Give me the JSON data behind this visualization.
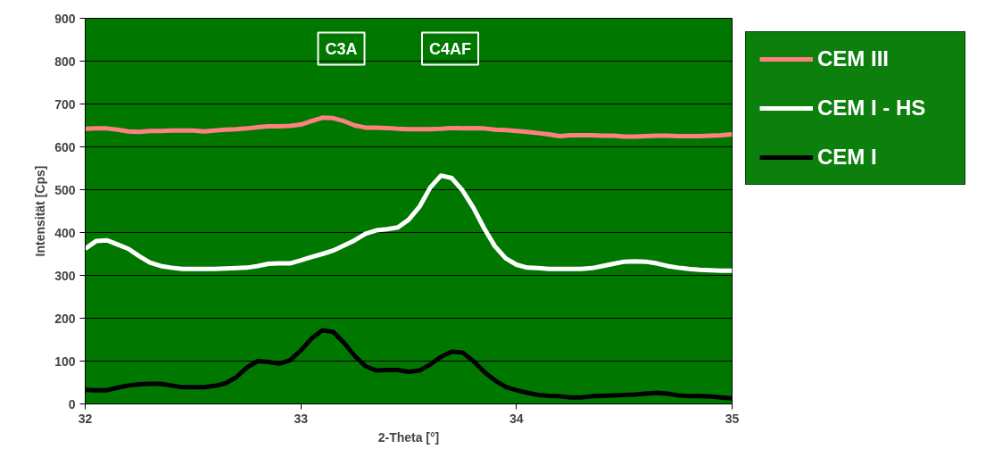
{
  "chart_data": {
    "type": "line",
    "xlabel": "2-Theta [°]",
    "ylabel": "Intensität [Cps]",
    "annotations": [
      "C3A",
      "C4AF"
    ],
    "x": [
      32,
      32.05,
      32.1,
      32.15,
      32.2,
      32.25,
      32.3,
      32.35,
      32.4,
      32.45,
      32.5,
      32.55,
      32.6,
      32.65,
      32.7,
      32.75,
      32.8,
      32.85,
      32.9,
      32.95,
      33,
      33.05,
      33.1,
      33.15,
      33.2,
      33.25,
      33.3,
      33.35,
      33.4,
      33.45,
      33.5,
      33.55,
      33.6,
      33.65,
      33.7,
      33.75,
      33.8,
      33.85,
      33.9,
      33.95,
      34,
      34.05,
      34.1,
      34.15,
      34.2,
      34.25,
      34.3,
      34.35,
      34.4,
      34.45,
      34.5,
      34.55,
      34.6,
      34.65,
      34.7,
      34.75,
      34.8,
      34.85,
      34.9,
      34.95,
      35
    ],
    "series": [
      {
        "name": "CEM III",
        "color": "#ff8080",
        "values": [
          642,
          643,
          643,
          640,
          636,
          635,
          637,
          637,
          638,
          638,
          638,
          636,
          638,
          640,
          641,
          643,
          646,
          648,
          648,
          649,
          652,
          660,
          668,
          667,
          660,
          650,
          645,
          645,
          644,
          642,
          641,
          641,
          641,
          642,
          644,
          643,
          644,
          643,
          640,
          639,
          637,
          635,
          632,
          629,
          625,
          627,
          627,
          627,
          626,
          626,
          624,
          624,
          625,
          626,
          626,
          625,
          625,
          625,
          626,
          627,
          629
        ]
      },
      {
        "name": "CEM I - HS",
        "color": "#ffffff",
        "values": [
          362,
          380,
          382,
          372,
          362,
          345,
          330,
          322,
          318,
          315,
          315,
          315,
          315,
          316,
          317,
          318,
          322,
          327,
          328,
          328,
          335,
          343,
          350,
          358,
          370,
          382,
          397,
          405,
          408,
          412,
          430,
          460,
          505,
          533,
          527,
          498,
          458,
          410,
          368,
          340,
          325,
          318,
          317,
          315,
          315,
          315,
          315,
          317,
          322,
          327,
          332,
          333,
          332,
          328,
          322,
          318,
          315,
          313,
          312,
          311,
          311
        ]
      },
      {
        "name": "CEM I",
        "color": "#000000",
        "values": [
          33,
          32,
          32,
          38,
          43,
          46,
          47,
          47,
          43,
          39,
          39,
          39,
          42,
          48,
          62,
          85,
          100,
          98,
          94,
          102,
          125,
          153,
          172,
          168,
          143,
          112,
          88,
          78,
          79,
          79,
          75,
          78,
          92,
          110,
          122,
          120,
          100,
          75,
          55,
          40,
          32,
          26,
          21,
          19,
          18,
          15,
          15,
          18,
          19,
          20,
          21,
          22,
          24,
          26,
          24,
          20,
          18,
          18,
          17,
          15,
          13
        ]
      }
    ],
    "xlim": [
      32,
      35
    ],
    "xticks": [
      32,
      33,
      34,
      35
    ],
    "ylim": [
      0,
      900
    ],
    "yticks": [
      0,
      100,
      200,
      300,
      400,
      500,
      600,
      700,
      800,
      900
    ],
    "grid": "y",
    "legend": "right",
    "marker": "none",
    "line_style": "solid"
  }
}
